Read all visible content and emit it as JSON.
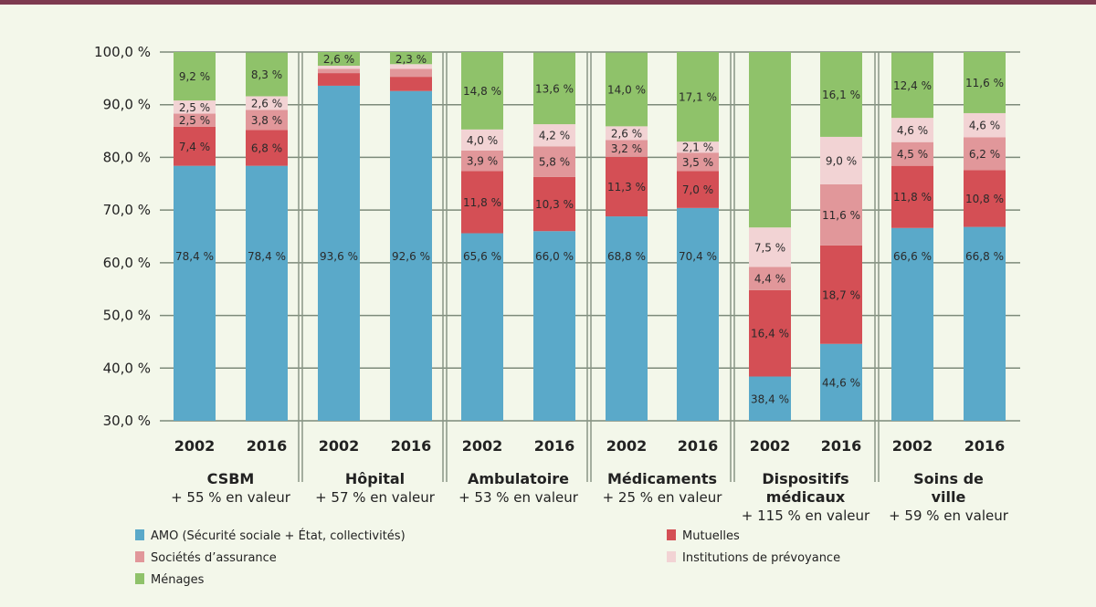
{
  "chart_data": {
    "type": "bar",
    "stacked": true,
    "title": "",
    "xlabel": "",
    "ylabel": "",
    "ylim": [
      30,
      100
    ],
    "yticks": [
      "30,0 %",
      "40,0 %",
      "50,0 %",
      "60,0 %",
      "70,0 %",
      "80,0 %",
      "90,0 %",
      "100,0 %"
    ],
    "ytick_values": [
      30,
      40,
      50,
      60,
      70,
      80,
      90,
      100
    ],
    "grid": true,
    "legend_position": "bottom",
    "groups": [
      {
        "name": "CSBM",
        "subtitle": "+ 55 % en valeur",
        "years": [
          "2002",
          "2016"
        ]
      },
      {
        "name": "Hôpital",
        "subtitle": "+ 57 % en valeur",
        "years": [
          "2002",
          "2016"
        ]
      },
      {
        "name": "Ambulatoire",
        "subtitle": "+ 53 % en valeur",
        "years": [
          "2002",
          "2016"
        ]
      },
      {
        "name": "Médicaments",
        "subtitle": "+ 25 % en valeur",
        "years": [
          "2002",
          "2016"
        ]
      },
      {
        "name": "Dispositifs médicaux",
        "name_lines": [
          "Dispositifs",
          "médicaux"
        ],
        "subtitle": "+ 115 % en valeur",
        "years": [
          "2002",
          "2016"
        ]
      },
      {
        "name": "Soins de ville",
        "name_lines": [
          "Soins de",
          "ville"
        ],
        "subtitle": "+ 59 % en valeur",
        "years": [
          "2002",
          "2016"
        ]
      }
    ],
    "categories": [
      "CSBM 2002",
      "CSBM 2016",
      "Hôpital 2002",
      "Hôpital 2016",
      "Ambulatoire 2002",
      "Ambulatoire 2016",
      "Médicaments 2002",
      "Médicaments 2016",
      "Dispositifs médicaux 2002",
      "Dispositifs médicaux 2016",
      "Soins de ville 2002",
      "Soins de ville 2016"
    ],
    "series": [
      {
        "name": "AMO (Sécurité sociale + État, collectivités)",
        "color": "#5aa9c9",
        "values": [
          78.4,
          78.4,
          93.6,
          92.6,
          65.6,
          66.0,
          68.8,
          70.4,
          38.4,
          44.6,
          66.6,
          66.8
        ],
        "labels": [
          "78,4 %",
          "78,4 %",
          "93,6 %",
          "92,6 %",
          "65,6 %",
          "66,0 %",
          "68,8 %",
          "70,4 %",
          "38,4 %",
          "44,6 %",
          "66,6 %",
          "66,8 %"
        ]
      },
      {
        "name": "Mutuelles",
        "color": "#d44f55",
        "values": [
          7.4,
          6.8,
          2.4,
          2.7,
          11.8,
          10.3,
          11.3,
          7.0,
          16.4,
          18.7,
          11.8,
          10.8
        ],
        "labels": [
          "7,4 %",
          "6,8 %",
          "",
          "",
          "11,8 %",
          "10,3 %",
          "11,3 %",
          "7,0 %",
          "16,4 %",
          "18,7 %",
          "11,8 %",
          "10,8 %"
        ]
      },
      {
        "name": "Sociétés d’assurance",
        "color": "#e1979a",
        "values": [
          2.5,
          3.8,
          0.8,
          1.5,
          3.9,
          5.8,
          3.2,
          3.5,
          4.4,
          11.6,
          4.5,
          6.2
        ],
        "labels": [
          "2,5 %",
          "3,8 %",
          "",
          "",
          "3,9 %",
          "5,8 %",
          "3,2 %",
          "3,5 %",
          "4,4 %",
          "11,6 %",
          "4,5 %",
          "6,2 %"
        ]
      },
      {
        "name": "Institutions de prévoyance",
        "color": "#f2d3d4",
        "values": [
          2.5,
          2.6,
          0.6,
          0.9,
          4.0,
          4.2,
          2.6,
          2.1,
          7.5,
          9.0,
          4.6,
          4.6
        ],
        "labels": [
          "2,5 %",
          "2,6 %",
          "",
          "",
          "4,0 %",
          "4,2 %",
          "2,6 %",
          "2,1 %",
          "7,5 %",
          "9,0 %",
          "4,6 %",
          "4,6 %"
        ]
      },
      {
        "name": "Ménages",
        "color": "#8fc26a",
        "values": [
          9.2,
          8.3,
          2.6,
          2.3,
          14.8,
          13.6,
          14.0,
          17.1,
          33.3,
          16.1,
          12.4,
          11.6
        ],
        "labels": [
          "9,2 %",
          "8,3 %",
          "2,6 %",
          "2,3 %",
          "14,8 %",
          "13,6 %",
          "14,0 %",
          "17,1 %",
          "",
          "16,1 %",
          "12,4 %",
          "11,6 %"
        ]
      }
    ]
  }
}
